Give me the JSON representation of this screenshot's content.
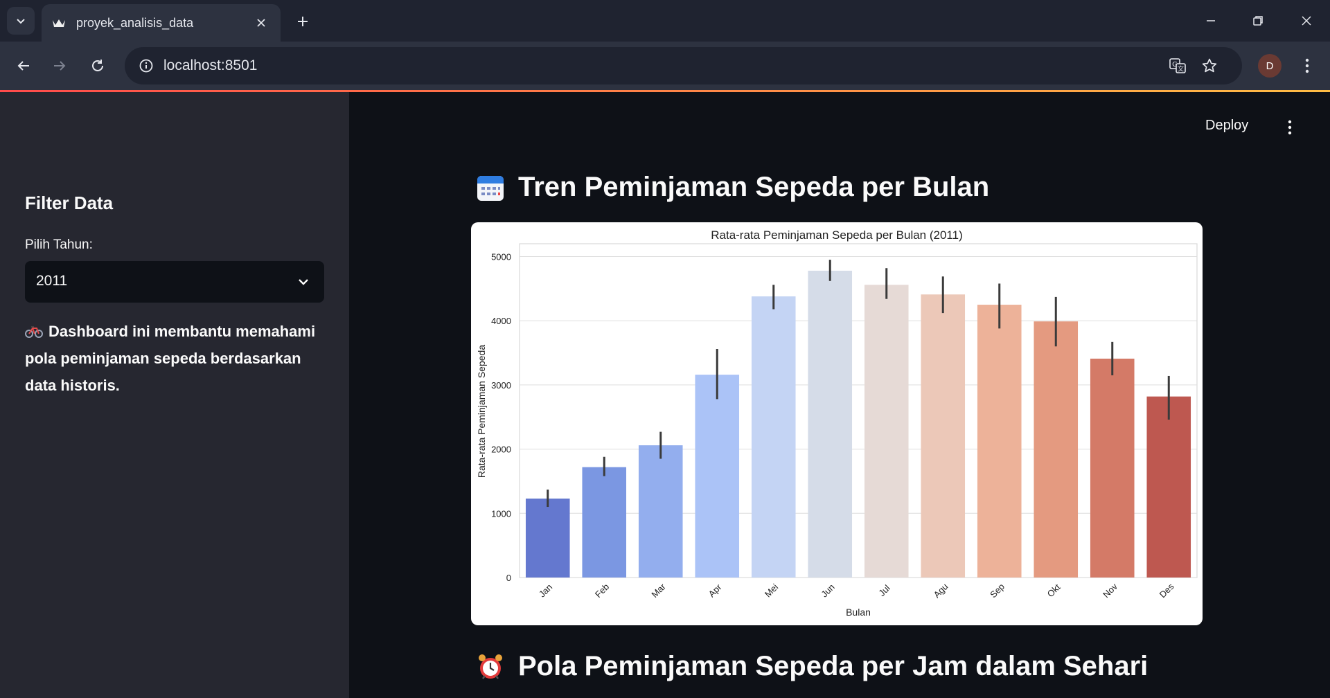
{
  "browser": {
    "tab_title": "proyek_analisis_data",
    "url": "localhost:8501",
    "profile_initial": "D"
  },
  "app": {
    "deploy_label": "Deploy",
    "accent_gradient": [
      "#ff4b4b",
      "#ffbd45"
    ]
  },
  "sidebar": {
    "title": "Filter Data",
    "year_label": "Pilih Tahun:",
    "year_value": "2011",
    "description": "Dashboard ini membantu memahami pola peminjaman sepeda berdasarkan data historis.",
    "description_icon": "bicycle-icon"
  },
  "main": {
    "section1_title": "Tren Peminjaman Sepeda per Bulan",
    "section1_icon": "calendar-icon",
    "section2_title": "Pola Peminjaman Sepeda per Jam dalam Sehari",
    "section2_icon": "alarm-clock-icon"
  },
  "chart_data": {
    "type": "bar",
    "title": "Rata-rata Peminjaman Sepeda per Bulan (2011)",
    "xlabel": "Bulan",
    "ylabel": "Rata-rata Peminjaman Sepeda",
    "categories": [
      "Jan",
      "Feb",
      "Mar",
      "Apr",
      "Mei",
      "Jun",
      "Jul",
      "Agu",
      "Sep",
      "Okt",
      "Nov",
      "Des"
    ],
    "values": [
      1230,
      1720,
      2060,
      3160,
      4380,
      4780,
      4560,
      4410,
      4250,
      3990,
      3410,
      2820
    ],
    "error_low": [
      1100,
      1580,
      1850,
      2780,
      4180,
      4620,
      4340,
      4120,
      3880,
      3600,
      3150,
      2460
    ],
    "error_high": [
      1370,
      1880,
      2270,
      3560,
      4560,
      4950,
      4820,
      4690,
      4580,
      4370,
      3670,
      3140
    ],
    "colors": [
      "#6478cf",
      "#7b97e2",
      "#93aeee",
      "#abc3f7",
      "#c4d4f4",
      "#d5dce8",
      "#e6dad6",
      "#ecc8b8",
      "#edb299",
      "#e49a80",
      "#d47a67",
      "#be5850"
    ],
    "yticks": [
      0,
      1000,
      2000,
      3000,
      4000,
      5000
    ],
    "ylim": [
      0,
      5200
    ],
    "grid": true
  }
}
